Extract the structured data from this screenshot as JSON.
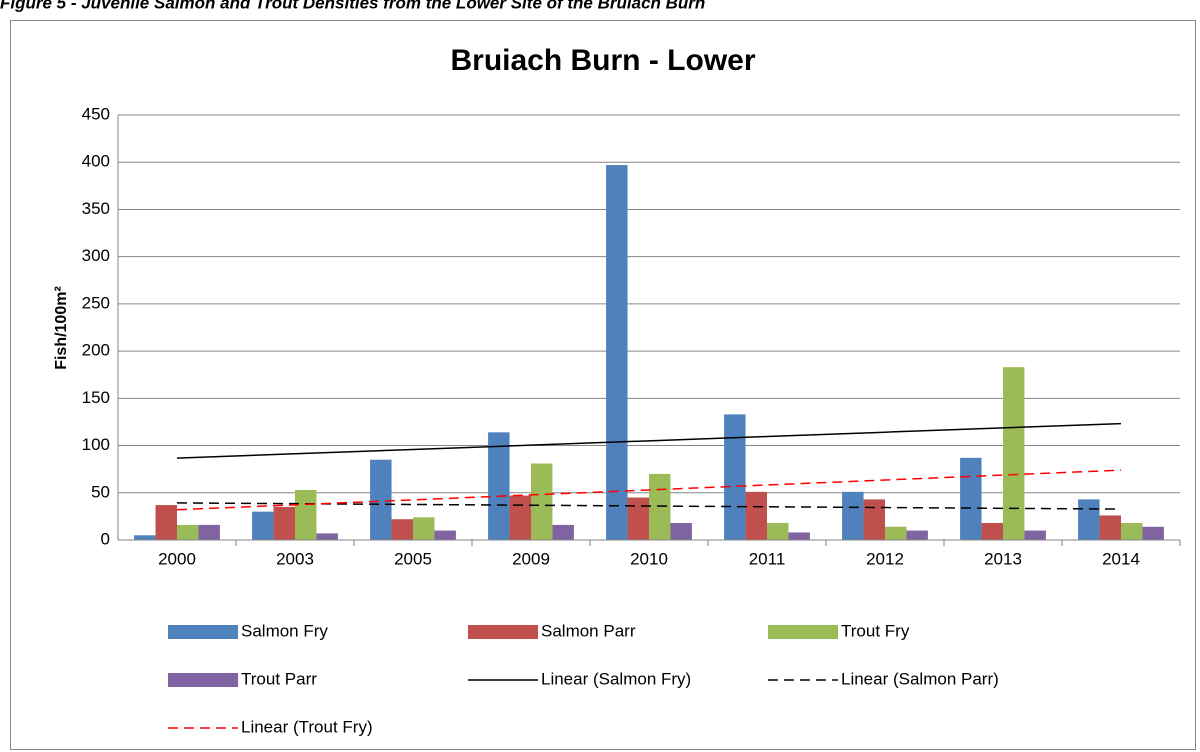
{
  "caption": "Figure 5 - Juvenile Salmon and Trout Densities from the Lower Site of the Bruiach Burn",
  "chart_data": {
    "type": "bar",
    "title": "Bruiach Burn - Lower",
    "y_label": "Fish/100m²",
    "categories": [
      "2000",
      "2003",
      "2005",
      "2009",
      "2010",
      "2011",
      "2012",
      "2013",
      "2014"
    ],
    "series": [
      {
        "name": "Salmon Fry",
        "color": "#4f81bd",
        "values": [
          5,
          30,
          85,
          114,
          397,
          133,
          51,
          87,
          43
        ]
      },
      {
        "name": "Salmon Parr",
        "color": "#c0504d",
        "values": [
          37,
          35,
          22,
          47,
          45,
          51,
          43,
          18,
          26
        ]
      },
      {
        "name": "Trout Fry",
        "color": "#9bbb59",
        "values": [
          16,
          53,
          24,
          81,
          70,
          18,
          14,
          183,
          18
        ]
      },
      {
        "name": "Trout Parr",
        "color": "#8064a2",
        "values": [
          16,
          7,
          10,
          16,
          18,
          8,
          10,
          10,
          14
        ]
      }
    ],
    "trendlines": [
      {
        "name": "Linear (Salmon Fry)",
        "series": 0,
        "color": "#000000",
        "dashed": false
      },
      {
        "name": "Linear (Salmon Parr)",
        "series": 1,
        "color": "#000000",
        "dashed": true
      },
      {
        "name": "Linear (Trout Fry)",
        "series": 2,
        "color": "#ff0000",
        "dashed": true
      }
    ],
    "ylim": [
      0,
      450
    ],
    "yticks": [
      0,
      50,
      100,
      150,
      200,
      250,
      300,
      350,
      400,
      450
    ],
    "grid": true,
    "legend": "bottom"
  }
}
